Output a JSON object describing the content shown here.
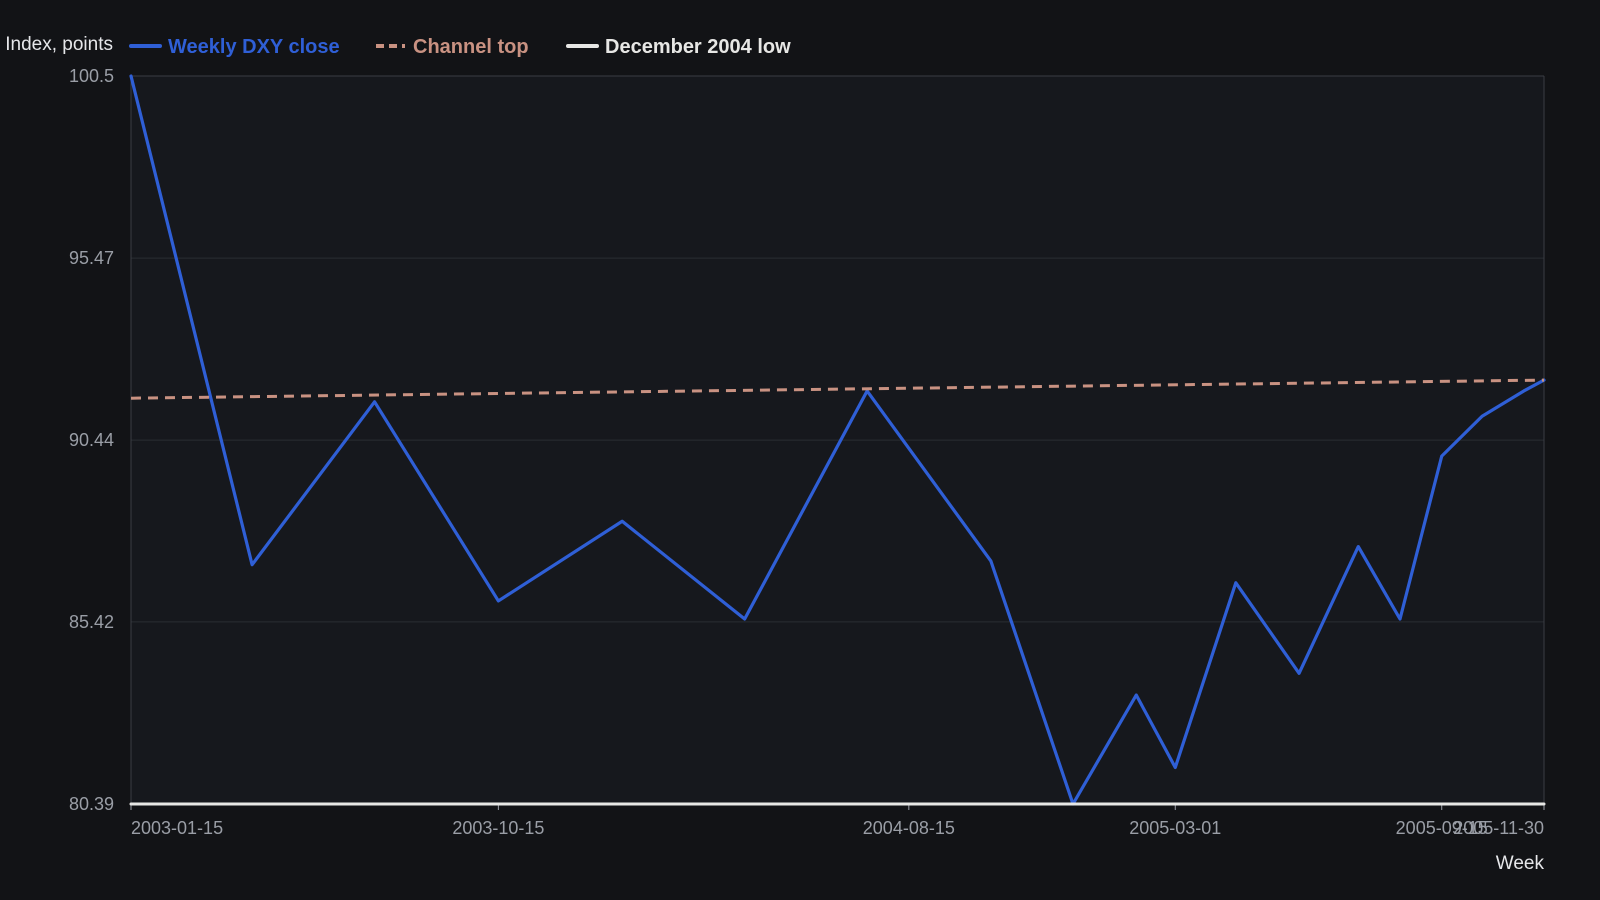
{
  "colors": {
    "page_background": "#121316",
    "plot_background": "#16181d",
    "grid": "#2a2d33",
    "axis": "#3a3d44",
    "tick_text": "#9a9ea6",
    "label_text": "#e6e7ea",
    "weekly_close": "#2f5fd6",
    "channel_top": "#c99282",
    "december_low": "#e7e7e5"
  },
  "chart_data": {
    "type": "line",
    "title": "",
    "xlabel": "Week",
    "ylabel": "US Dollar Index, points",
    "ylim": [
      80.39,
      100.5
    ],
    "xlim": [
      "2003-01-15",
      "2005-11-30"
    ],
    "grid": true,
    "legend_position": "top-left",
    "x_ticks": [
      "2003-01-15",
      "2003-10-15",
      "2004-08-15",
      "2005-03-01",
      "2005-09-15",
      "2005-11-30"
    ],
    "y_ticks": [
      80.39,
      85.42,
      90.44,
      95.47,
      100.5
    ],
    "y_tick_labels": [
      "80.39",
      "85.42",
      "90.44",
      "95.47",
      "100.5"
    ],
    "series": [
      {
        "name": "Weekly DXY close",
        "style": "solid",
        "color_key": "weekly_close",
        "x": [
          "2003-01-15",
          "2003-04-15",
          "2003-07-15",
          "2003-10-15",
          "2004-01-15",
          "2004-04-15",
          "2004-07-15",
          "2004-10-15",
          "2004-12-15",
          "2005-01-31",
          "2005-03-01",
          "2005-04-15",
          "2005-06-01",
          "2005-07-15",
          "2005-08-15",
          "2005-09-15",
          "2005-10-15",
          "2005-11-15",
          "2005-11-30"
        ],
        "y": [
          100.5,
          87.0,
          91.5,
          86.0,
          88.2,
          85.5,
          91.8,
          87.1,
          80.39,
          83.4,
          81.4,
          86.5,
          84.0,
          87.5,
          85.5,
          90.0,
          91.1,
          91.8,
          92.1
        ]
      },
      {
        "name": "Channel top",
        "style": "dashed",
        "color_key": "channel_top",
        "x": [
          "2003-01-15",
          "2005-11-30"
        ],
        "y": [
          91.6,
          92.1
        ]
      },
      {
        "name": "December 2004 low",
        "style": "solid",
        "color_key": "december_low",
        "x": [
          "2003-01-15",
          "2005-11-30"
        ],
        "y": [
          80.39,
          80.39
        ]
      }
    ]
  }
}
